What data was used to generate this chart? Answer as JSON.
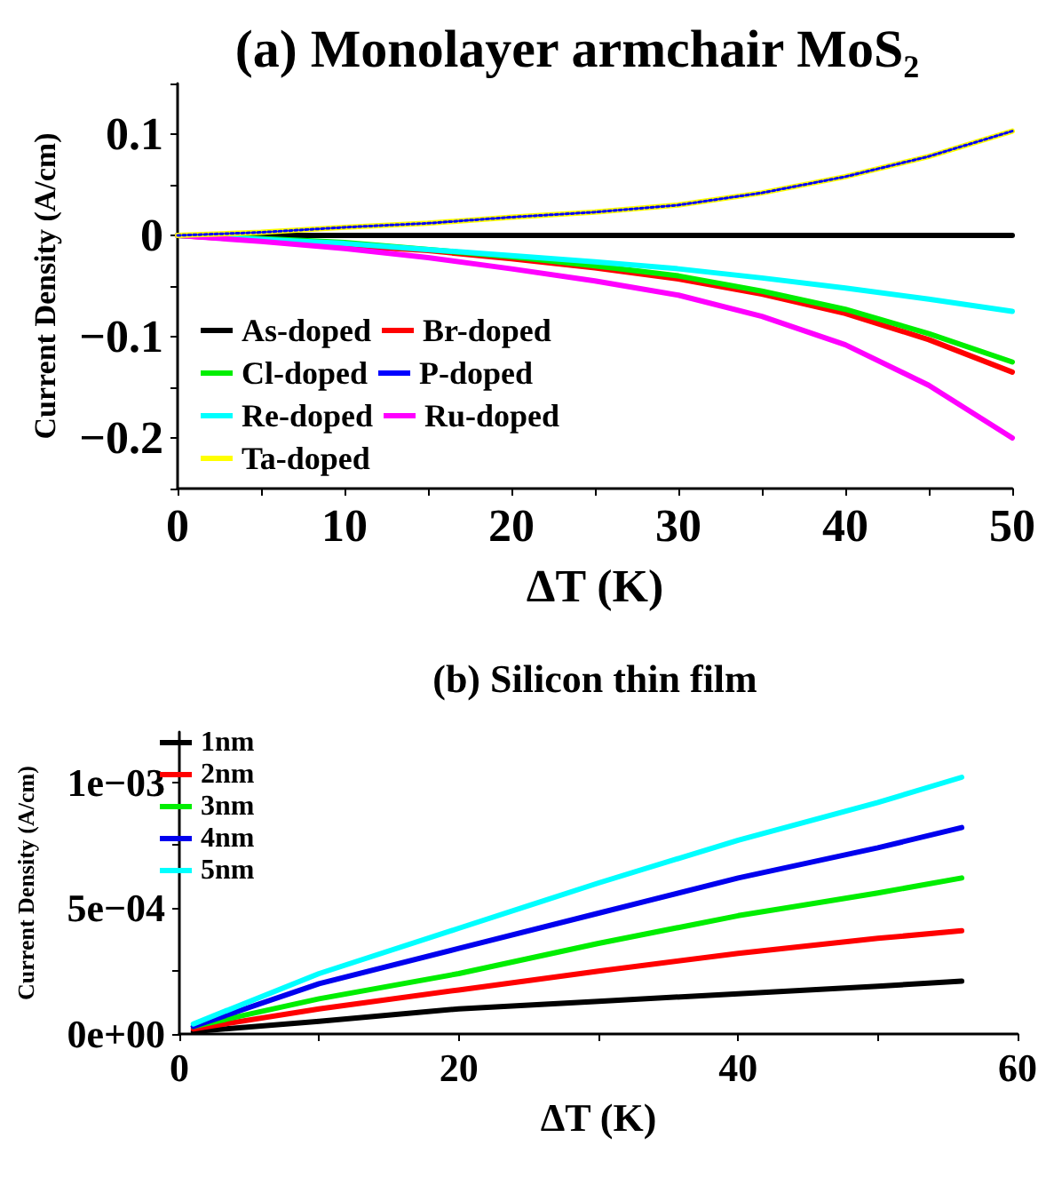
{
  "chart_data": [
    {
      "type": "line",
      "title": "(a) Monolayer armchair MoS₂",
      "xlabel": "ΔT (K)",
      "ylabel": "Current Density (A/cm)",
      "x": [
        0,
        5,
        10,
        15,
        20,
        25,
        30,
        35,
        40,
        45,
        50
      ],
      "xlim": [
        0,
        50
      ],
      "xticks": [
        0,
        {
          "value": 5,
          "label": null
        },
        10,
        {
          "value": 15,
          "label": null
        },
        20,
        {
          "value": 25,
          "label": null
        },
        30,
        {
          "value": 35,
          "label": null
        },
        40,
        {
          "value": 45,
          "label": null
        },
        50
      ],
      "ylim": [
        -0.25,
        0.15
      ],
      "yticks": [
        {
          "value": -0.25,
          "label": null
        },
        {
          "value": -0.2,
          "label": "−0.2"
        },
        {
          "value": -0.15,
          "label": null
        },
        {
          "value": -0.1,
          "label": "−0.1"
        },
        {
          "value": -0.05,
          "label": null
        },
        0,
        {
          "value": 0.05,
          "label": null
        },
        0.1,
        {
          "value": 0.15,
          "label": null
        }
      ],
      "grid": false,
      "legend": "bottom left",
      "marker": "none",
      "line_style": "solid",
      "series": [
        {
          "name": "As-doped",
          "color": "#000000",
          "values": [
            0,
            0,
            0,
            0,
            0,
            0,
            0,
            0,
            0,
            0,
            0
          ]
        },
        {
          "name": "Br-doped",
          "color": "#ff0000",
          "values": [
            0,
            null,
            null,
            -0.015,
            -0.023,
            -0.032,
            -0.043,
            -0.058,
            -0.077,
            -0.103,
            -0.135
          ]
        },
        {
          "name": "Cl-doped",
          "color": "#00ee00",
          "values": [
            0,
            -0.003,
            -0.007,
            null,
            -0.021,
            -0.03,
            -0.04,
            -0.055,
            -0.073,
            -0.097,
            -0.125
          ]
        },
        {
          "name": "P-doped",
          "color": "#0000ff",
          "line_style": "dotted",
          "values": [
            0,
            0.003,
            0.008,
            0.012,
            0.018,
            0.023,
            0.03,
            0.042,
            0.058,
            0.078,
            0.103
          ]
        },
        {
          "name": "Re-doped",
          "color": "#00ffff",
          "values": [
            0,
            -0.004,
            -0.008,
            -0.014,
            -0.02,
            -0.026,
            -0.033,
            -0.042,
            -0.052,
            -0.063,
            -0.075
          ]
        },
        {
          "name": "Ru-doped",
          "color": "#ff00ff",
          "values": [
            0,
            -0.006,
            -0.013,
            -0.022,
            -0.033,
            -0.045,
            -0.059,
            -0.08,
            -0.108,
            -0.148,
            -0.2
          ]
        },
        {
          "name": "Ta-doped",
          "color": "#ffff00",
          "values": [
            0,
            0.003,
            0.008,
            0.012,
            0.018,
            0.023,
            0.03,
            0.042,
            0.058,
            0.078,
            0.103
          ]
        }
      ]
    },
    {
      "type": "line",
      "title": "(b) Silicon thin film",
      "xlabel": "ΔT (K)",
      "ylabel": "Current Density (A/cm)",
      "x": [
        1,
        10,
        20,
        30,
        40,
        50,
        56
      ],
      "xlim": [
        0,
        60
      ],
      "xticks": [
        0,
        {
          "value": 10,
          "label": null
        },
        20,
        {
          "value": 30,
          "label": null
        },
        40,
        {
          "value": 50,
          "label": null
        },
        60
      ],
      "ylim": [
        0,
        0.0012
      ],
      "yticks": [
        {
          "value": 0,
          "label": "0e+00"
        },
        {
          "value": 0.00025,
          "label": null
        },
        {
          "value": 0.0005,
          "label": "5e−04"
        },
        {
          "value": 0.00075,
          "label": null
        },
        {
          "value": 0.001,
          "label": "1e−03"
        }
      ],
      "grid": false,
      "legend": "top left",
      "marker": "none",
      "line_style": "solid",
      "series": [
        {
          "name": "1nm",
          "color": "#000000",
          "values": [
            1e-05,
            5e-05,
            0.0001,
            0.00013,
            0.00016,
            0.00019,
            0.00021
          ]
        },
        {
          "name": "2nm",
          "color": "#ff0000",
          "values": [
            2e-05,
            0.0001,
            0.000175,
            0.00025,
            0.00032,
            0.00038,
            0.00041
          ]
        },
        {
          "name": "3nm",
          "color": "#00ee00",
          "values": [
            3e-05,
            0.00014,
            0.00024,
            0.00036,
            0.00047,
            0.00056,
            0.00062
          ]
        },
        {
          "name": "4nm",
          "color": "#0000ee",
          "values": [
            3e-05,
            0.0002,
            0.00034,
            0.00048,
            0.00062,
            0.00074,
            0.00082
          ]
        },
        {
          "name": "5nm",
          "color": "#00ffff",
          "values": [
            4e-05,
            0.00024,
            0.00042,
            0.0006,
            0.00077,
            0.00092,
            0.00102
          ]
        }
      ]
    }
  ]
}
